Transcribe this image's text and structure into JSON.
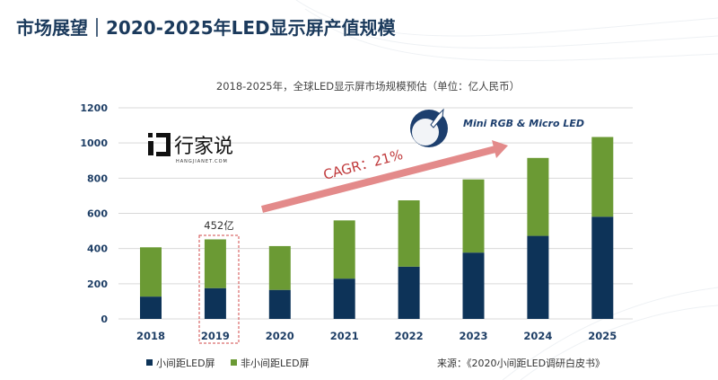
{
  "title": "市场展望｜2020-2025年LED显示屏产值规模",
  "logo": {
    "text": "行家说",
    "sub": "HANGJIANET.COM"
  },
  "badge": {
    "icon": "rocket-globe-icon",
    "text": "Mini RGB & Micro LED"
  },
  "annotation": {
    "cagr": "CAGR：21%",
    "highlight_label": "452亿",
    "highlight_category": "2019"
  },
  "source": "来源：《2020小间距LED调研白皮书》",
  "colors": {
    "small_pitch": "#0d3358",
    "non_small_pitch": "#6b9a34",
    "arrow": "#e38a8a",
    "title": "#1b3a5c"
  },
  "chart_data": {
    "type": "bar",
    "stacked": true,
    "title": "2018-2025年，全球LED显示屏市场规模预估（单位：亿人民币）",
    "categories": [
      "2018",
      "2019",
      "2020",
      "2021",
      "2022",
      "2023",
      "2024",
      "2025"
    ],
    "series": [
      {
        "name": "小间距LED屏",
        "values": [
          127,
          175,
          165,
          229,
          297,
          377,
          472,
          581
        ]
      },
      {
        "name": "非小间距LED屏",
        "values": [
          280,
          277,
          249,
          331,
          377,
          416,
          443,
          453
        ]
      }
    ],
    "ylim": [
      0,
      1200
    ],
    "yticks": [
      "0",
      "200",
      "400",
      "600",
      "800",
      "1000",
      "1200"
    ],
    "grid": true,
    "legend": "bottom-left"
  }
}
